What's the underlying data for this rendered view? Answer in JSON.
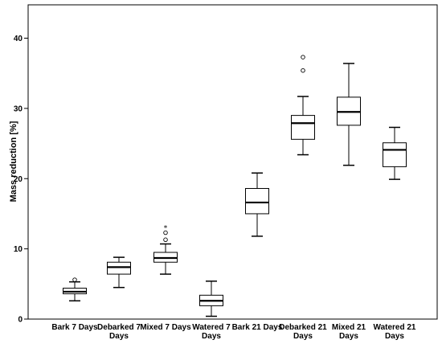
{
  "chart_data": {
    "type": "boxplot",
    "xlabel": "",
    "ylabel": "Mass reduction [%]",
    "ylim": [
      0,
      42
    ],
    "yticks": [
      0,
      10,
      20,
      30,
      40
    ],
    "grid": false,
    "categories": [
      [
        "Bark 7 Days"
      ],
      [
        "Debarked 7",
        "Days"
      ],
      [
        "Mixed 7 Days"
      ],
      [
        "Watered 7",
        "Days"
      ],
      [
        "Bark 21 Days"
      ],
      [
        "Debarked 21",
        "Days"
      ],
      [
        "Mixed 21",
        "Days"
      ],
      [
        "Watered 21",
        "Days"
      ]
    ],
    "boxes": [
      {
        "min": 2.6,
        "q1": 3.6,
        "median": 3.9,
        "q3": 4.4,
        "max": 5.3,
        "outliers_circle": [
          5.6
        ],
        "outliers_star": []
      },
      {
        "min": 4.5,
        "q1": 6.4,
        "median": 7.4,
        "q3": 8.1,
        "max": 8.8,
        "outliers_circle": [],
        "outliers_star": []
      },
      {
        "min": 6.4,
        "q1": 8.1,
        "median": 8.7,
        "q3": 9.5,
        "max": 10.7,
        "outliers_circle": [
          11.3,
          12.3
        ],
        "outliers_star": [
          13.1
        ]
      },
      {
        "min": 0.4,
        "q1": 1.9,
        "median": 2.6,
        "q3": 3.4,
        "max": 5.4,
        "outliers_circle": [],
        "outliers_star": []
      },
      {
        "min": 11.8,
        "q1": 15.0,
        "median": 16.6,
        "q3": 18.6,
        "max": 20.8,
        "outliers_circle": [],
        "outliers_star": []
      },
      {
        "min": 23.4,
        "q1": 25.6,
        "median": 27.9,
        "q3": 29.0,
        "max": 31.7,
        "outliers_circle": [
          35.4,
          37.3
        ],
        "outliers_star": []
      },
      {
        "min": 21.9,
        "q1": 27.6,
        "median": 29.5,
        "q3": 31.6,
        "max": 36.4,
        "outliers_circle": [],
        "outliers_star": []
      },
      {
        "min": 19.9,
        "q1": 21.7,
        "median": 24.1,
        "q3": 25.1,
        "max": 27.3,
        "outliers_circle": [],
        "outliers_star": []
      }
    ]
  }
}
